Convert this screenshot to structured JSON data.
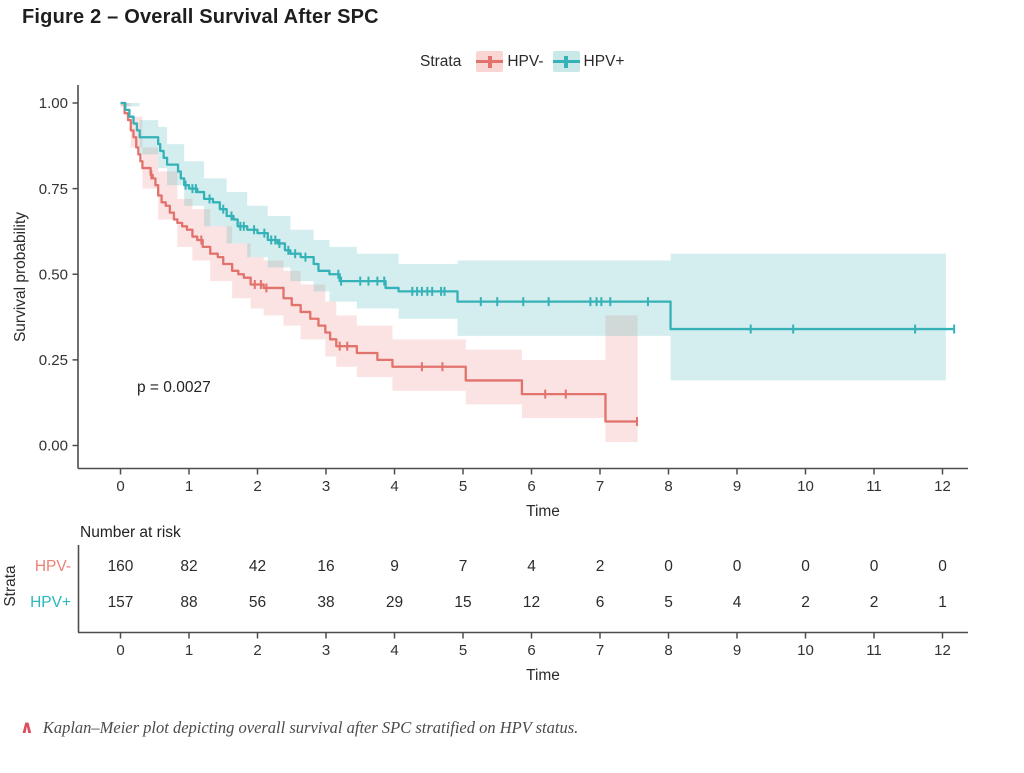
{
  "title": "Figure 2 – Overall Survival After SPC",
  "legend": {
    "label": "Strata",
    "items": [
      {
        "name": "HPV-",
        "color": "#E2726C",
        "fill": "#F9D6D3"
      },
      {
        "name": "HPV+",
        "color": "#35B2B7",
        "fill": "#C9E9E9"
      }
    ]
  },
  "pvalue": "p = 0.0027",
  "axes": {
    "y_label": "Survival probability",
    "x_label": "Time",
    "y_ticks": [
      "1.00",
      "0.75",
      "0.50",
      "0.25",
      "0.00"
    ],
    "x_ticks": [
      0,
      1,
      2,
      3,
      4,
      5,
      6,
      7,
      8,
      9,
      10,
      11,
      12
    ]
  },
  "risk_table": {
    "header": "Number at risk",
    "strata_label": "Strata",
    "x_label": "Time",
    "rows": [
      {
        "name": "HPV-",
        "color": "#EE8177",
        "values": [
          160,
          82,
          42,
          16,
          9,
          7,
          4,
          2,
          0,
          0,
          0,
          0,
          0
        ]
      },
      {
        "name": "HPV+",
        "color": "#2BB8BD",
        "values": [
          157,
          88,
          56,
          38,
          29,
          15,
          12,
          6,
          5,
          4,
          2,
          2,
          1
        ]
      }
    ]
  },
  "caption": {
    "icon": "caret-up-icon",
    "icon_color": "#DD4F5E",
    "text": "Kaplan–Meier plot depicting overall survival after SPC stratified on HPV status."
  },
  "chart_data": {
    "type": "line",
    "subtype": "kaplan-meier-step",
    "title": "Overall Survival After SPC",
    "xlabel": "Time",
    "ylabel": "Survival probability",
    "xlim": [
      0,
      12.3
    ],
    "ylim": [
      0,
      1
    ],
    "x_ticks": [
      0,
      1,
      2,
      3,
      4,
      5,
      6,
      7,
      8,
      9,
      10,
      11,
      12
    ],
    "y_tick_values": [
      1.0,
      0.75,
      0.5,
      0.25,
      0.0
    ],
    "grid": false,
    "legend_position": "top",
    "pvalue_annotation": "p = 0.0027",
    "series": [
      {
        "name": "HPV-",
        "color": "#E2726C",
        "band_color": "rgba(232,114,108,0.20)",
        "end_time": 7.55,
        "steps": [
          [
            0,
            1.0
          ],
          [
            0.06,
            0.97
          ],
          [
            0.11,
            0.95
          ],
          [
            0.15,
            0.92
          ],
          [
            0.19,
            0.9
          ],
          [
            0.23,
            0.87
          ],
          [
            0.26,
            0.85
          ],
          [
            0.29,
            0.83
          ],
          [
            0.32,
            0.81
          ],
          [
            0.44,
            0.79
          ],
          [
            0.47,
            0.78
          ],
          [
            0.51,
            0.76
          ],
          [
            0.55,
            0.73
          ],
          [
            0.6,
            0.71
          ],
          [
            0.66,
            0.7
          ],
          [
            0.72,
            0.68
          ],
          [
            0.78,
            0.66
          ],
          [
            0.83,
            0.65
          ],
          [
            0.9,
            0.64
          ],
          [
            0.97,
            0.63
          ],
          [
            1.05,
            0.61
          ],
          [
            1.12,
            0.6
          ],
          [
            1.2,
            0.58
          ],
          [
            1.31,
            0.56
          ],
          [
            1.42,
            0.55
          ],
          [
            1.5,
            0.53
          ],
          [
            1.63,
            0.51
          ],
          [
            1.72,
            0.5
          ],
          [
            1.8,
            0.49
          ],
          [
            1.9,
            0.47
          ],
          [
            2.09,
            0.46
          ],
          [
            2.38,
            0.43
          ],
          [
            2.5,
            0.41
          ],
          [
            2.63,
            0.39
          ],
          [
            2.77,
            0.37
          ],
          [
            2.89,
            0.35
          ],
          [
            2.99,
            0.33
          ],
          [
            3.06,
            0.31
          ],
          [
            3.15,
            0.29
          ],
          [
            3.45,
            0.27
          ],
          [
            3.75,
            0.25
          ],
          [
            3.97,
            0.23
          ],
          [
            5.04,
            0.19
          ],
          [
            5.86,
            0.15
          ],
          [
            7.08,
            0.07
          ]
        ],
        "censor_times": [
          0.45,
          1.18,
          1.96,
          2.05,
          2.13,
          3.2,
          3.31,
          4.4,
          4.7,
          6.2,
          6.5,
          7.54
        ],
        "ci": [
          [
            0,
            0.99,
            1.0
          ],
          [
            0.15,
            0.87,
            0.96
          ],
          [
            0.32,
            0.75,
            0.87
          ],
          [
            0.55,
            0.66,
            0.8
          ],
          [
            0.83,
            0.58,
            0.72
          ],
          [
            1.05,
            0.54,
            0.69
          ],
          [
            1.31,
            0.48,
            0.64
          ],
          [
            1.63,
            0.43,
            0.59
          ],
          [
            1.9,
            0.4,
            0.55
          ],
          [
            2.09,
            0.38,
            0.54
          ],
          [
            2.38,
            0.35,
            0.51
          ],
          [
            2.63,
            0.31,
            0.47
          ],
          [
            2.99,
            0.26,
            0.42
          ],
          [
            3.15,
            0.23,
            0.38
          ],
          [
            3.45,
            0.2,
            0.35
          ],
          [
            3.97,
            0.16,
            0.31
          ],
          [
            5.04,
            0.12,
            0.28
          ],
          [
            5.86,
            0.08,
            0.25
          ],
          [
            7.08,
            0.01,
            0.38
          ]
        ],
        "ci_end": 7.55
      },
      {
        "name": "HPV+",
        "color": "#35B2B7",
        "band_color": "rgba(58,176,181,0.22)",
        "end_time": 12.17,
        "steps": [
          [
            0,
            1.0
          ],
          [
            0.07,
            0.98
          ],
          [
            0.13,
            0.96
          ],
          [
            0.19,
            0.94
          ],
          [
            0.24,
            0.92
          ],
          [
            0.28,
            0.9
          ],
          [
            0.55,
            0.88
          ],
          [
            0.58,
            0.86
          ],
          [
            0.63,
            0.84
          ],
          [
            0.68,
            0.82
          ],
          [
            0.84,
            0.8
          ],
          [
            0.88,
            0.78
          ],
          [
            0.93,
            0.76
          ],
          [
            1.0,
            0.75
          ],
          [
            1.12,
            0.74
          ],
          [
            1.22,
            0.72
          ],
          [
            1.35,
            0.71
          ],
          [
            1.45,
            0.69
          ],
          [
            1.55,
            0.67
          ],
          [
            1.65,
            0.66
          ],
          [
            1.71,
            0.64
          ],
          [
            1.85,
            0.63
          ],
          [
            2.0,
            0.62
          ],
          [
            2.15,
            0.6
          ],
          [
            2.29,
            0.59
          ],
          [
            2.4,
            0.57
          ],
          [
            2.48,
            0.56
          ],
          [
            2.63,
            0.55
          ],
          [
            2.82,
            0.53
          ],
          [
            2.89,
            0.51
          ],
          [
            3.05,
            0.5
          ],
          [
            3.2,
            0.48
          ],
          [
            3.87,
            0.46
          ],
          [
            4.06,
            0.45
          ],
          [
            4.92,
            0.42
          ],
          [
            8.03,
            0.34
          ]
        ],
        "censor_times": [
          0.95,
          1.05,
          1.1,
          1.3,
          1.5,
          1.62,
          1.75,
          1.8,
          1.95,
          2.1,
          2.2,
          2.26,
          2.32,
          2.45,
          2.55,
          2.7,
          3.18,
          3.22,
          3.5,
          3.62,
          3.75,
          3.85,
          4.26,
          4.33,
          4.4,
          4.48,
          4.55,
          4.68,
          4.73,
          5.26,
          5.5,
          5.88,
          6.25,
          6.86,
          6.95,
          7.02,
          7.15,
          7.7,
          9.2,
          9.82,
          11.6,
          12.17
        ],
        "ci": [
          [
            0,
            0.99,
            1.0
          ],
          [
            0.28,
            0.85,
            0.95
          ],
          [
            0.55,
            0.81,
            0.93
          ],
          [
            0.68,
            0.76,
            0.88
          ],
          [
            0.93,
            0.7,
            0.83
          ],
          [
            1.22,
            0.64,
            0.78
          ],
          [
            1.55,
            0.59,
            0.74
          ],
          [
            1.85,
            0.55,
            0.7
          ],
          [
            2.15,
            0.52,
            0.67
          ],
          [
            2.48,
            0.48,
            0.63
          ],
          [
            2.82,
            0.45,
            0.6
          ],
          [
            3.05,
            0.42,
            0.58
          ],
          [
            3.45,
            0.4,
            0.56
          ],
          [
            4.06,
            0.37,
            0.53
          ],
          [
            4.92,
            0.32,
            0.54
          ],
          [
            8.03,
            0.19,
            0.56
          ]
        ],
        "ci_end": 12.05
      }
    ],
    "risk_table": {
      "times": [
        0,
        1,
        2,
        3,
        4,
        5,
        6,
        7,
        8,
        9,
        10,
        11,
        12
      ],
      "HPV-": [
        160,
        82,
        42,
        16,
        9,
        7,
        4,
        2,
        0,
        0,
        0,
        0,
        0
      ],
      "HPV+": [
        157,
        88,
        56,
        38,
        29,
        15,
        12,
        6,
        5,
        4,
        2,
        2,
        1
      ]
    }
  }
}
